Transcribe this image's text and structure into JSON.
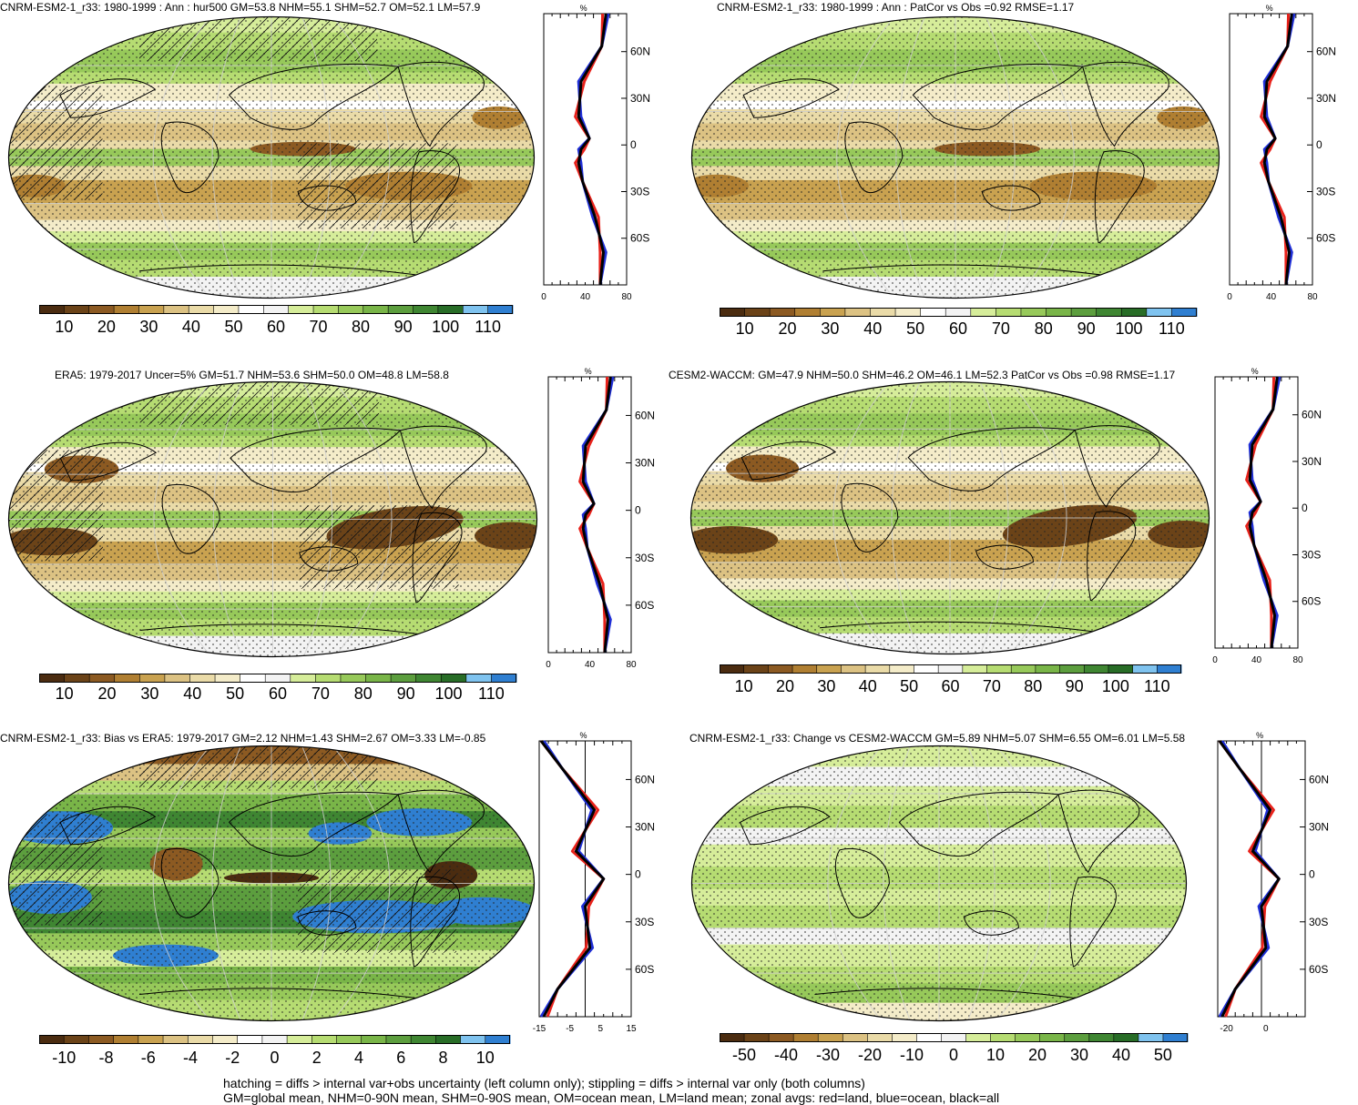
{
  "panels": [
    {
      "id": "p1",
      "title": "CNRM-ESM2-1_r33: 1980-1999 : Ann : hur500 GM=53.8 NHM=55.1 SHM=52.7 OM=52.1 LM=57.9",
      "zonal": {
        "unit": "%",
        "xticks": [
          "0",
          "40",
          "80"
        ],
        "lat_labels": [
          "60N",
          "30N",
          "0",
          "30S",
          "60S"
        ]
      },
      "colorbar": [
        "10",
        "20",
        "30",
        "40",
        "50",
        "60",
        "70",
        "80",
        "90",
        "100",
        "110"
      ]
    },
    {
      "id": "p2",
      "title": "CNRM-ESM2-1_r33: 1980-1999 : Ann : PatCor vs Obs =0.92 RMSE=1.17",
      "zonal": {
        "unit": "%",
        "xticks": [
          "0",
          "40",
          "80"
        ],
        "lat_labels": [
          "60N",
          "30N",
          "0",
          "30S",
          "60S"
        ]
      },
      "colorbar": [
        "10",
        "20",
        "30",
        "40",
        "50",
        "60",
        "70",
        "80",
        "90",
        "100",
        "110"
      ]
    },
    {
      "id": "p3",
      "title": "ERA5: 1979-2017 Uncer=5% GM=51.7 NHM=53.6 SHM=50.0 OM=48.8 LM=58.8",
      "zonal": {
        "unit": "%",
        "xticks": [
          "0",
          "40",
          "80"
        ],
        "lat_labels": [
          "60N",
          "30N",
          "0",
          "30S",
          "60S"
        ]
      },
      "colorbar": [
        "10",
        "20",
        "30",
        "40",
        "50",
        "60",
        "70",
        "80",
        "90",
        "100",
        "110"
      ]
    },
    {
      "id": "p4",
      "title": "CESM2-WACCM: GM=47.9 NHM=50.0 SHM=46.2 OM=46.1 LM=52.3 PatCor vs Obs =0.98 RMSE=1.17",
      "zonal": {
        "unit": "%",
        "xticks": [
          "0",
          "40",
          "80"
        ],
        "lat_labels": [
          "60N",
          "30N",
          "0",
          "30S",
          "60S"
        ]
      },
      "colorbar": [
        "10",
        "20",
        "30",
        "40",
        "50",
        "60",
        "70",
        "80",
        "90",
        "100",
        "110"
      ]
    },
    {
      "id": "p5",
      "title": "CNRM-ESM2-1_r33: Bias vs ERA5: 1979-2017 GM=2.12 NHM=1.43 SHM=2.67 OM=3.33 LM=-0.85",
      "zonal": {
        "unit": "%",
        "xticks": [
          "-15",
          "-5",
          "5",
          "15"
        ],
        "lat_labels": [
          "60N",
          "30N",
          "0",
          "30S",
          "60S"
        ]
      },
      "colorbar": [
        "-10",
        "-8",
        "-6",
        "-4",
        "-2",
        "0",
        "2",
        "4",
        "6",
        "8",
        "10"
      ]
    },
    {
      "id": "p6",
      "title": "CNRM-ESM2-1_r33: Change vs CESM2-WACCM GM=5.89 NHM=5.07 SHM=6.55 OM=6.01 LM=5.58",
      "zonal": {
        "unit": "%",
        "xticks": [
          "-20",
          "0"
        ],
        "lat_labels": [
          "60N",
          "30N",
          "0",
          "30S",
          "60S"
        ]
      },
      "colorbar": [
        "-50",
        "-40",
        "-30",
        "-20",
        "-10",
        "0",
        "10",
        "20",
        "30",
        "40",
        "50"
      ]
    }
  ],
  "colors": {
    "abs_scale": [
      "#4b2c10",
      "#6b4318",
      "#8c5a22",
      "#b07f32",
      "#c9a250",
      "#dcc283",
      "#eadba8",
      "#f4ecc9",
      "#ffffff",
      "#f3f3f3",
      "#d6ed9a",
      "#b6dc72",
      "#97c95a",
      "#79b548",
      "#5c9e3e",
      "#3f8632",
      "#286d27",
      "#7fc3ef",
      "#2f7fd1"
    ],
    "diff_scale": [
      "#4b2c10",
      "#6b4318",
      "#8c5a22",
      "#b07f32",
      "#c9a250",
      "#dcc283",
      "#eadba8",
      "#f4ecc9",
      "#ffffff",
      "#f3f3f3",
      "#d6ed9a",
      "#b6dc72",
      "#97c95a",
      "#79b548",
      "#5c9e3e",
      "#3f8632",
      "#286d27",
      "#7fc3ef",
      "#2f7fd1"
    ],
    "line_land": "#e8221b",
    "line_ocean": "#1f2fd6",
    "line_all": "#000000"
  },
  "footer": {
    "line1": "hatching = diffs > internal var+obs uncertainty (left column only); stippling = diffs > internal var only (both columns)",
    "line2": "GM=global mean, NHM=0-90N mean, SHM=0-90S mean, OM=ocean mean, LM=land mean; zonal avgs: red=land, blue=ocean, black=all"
  }
}
